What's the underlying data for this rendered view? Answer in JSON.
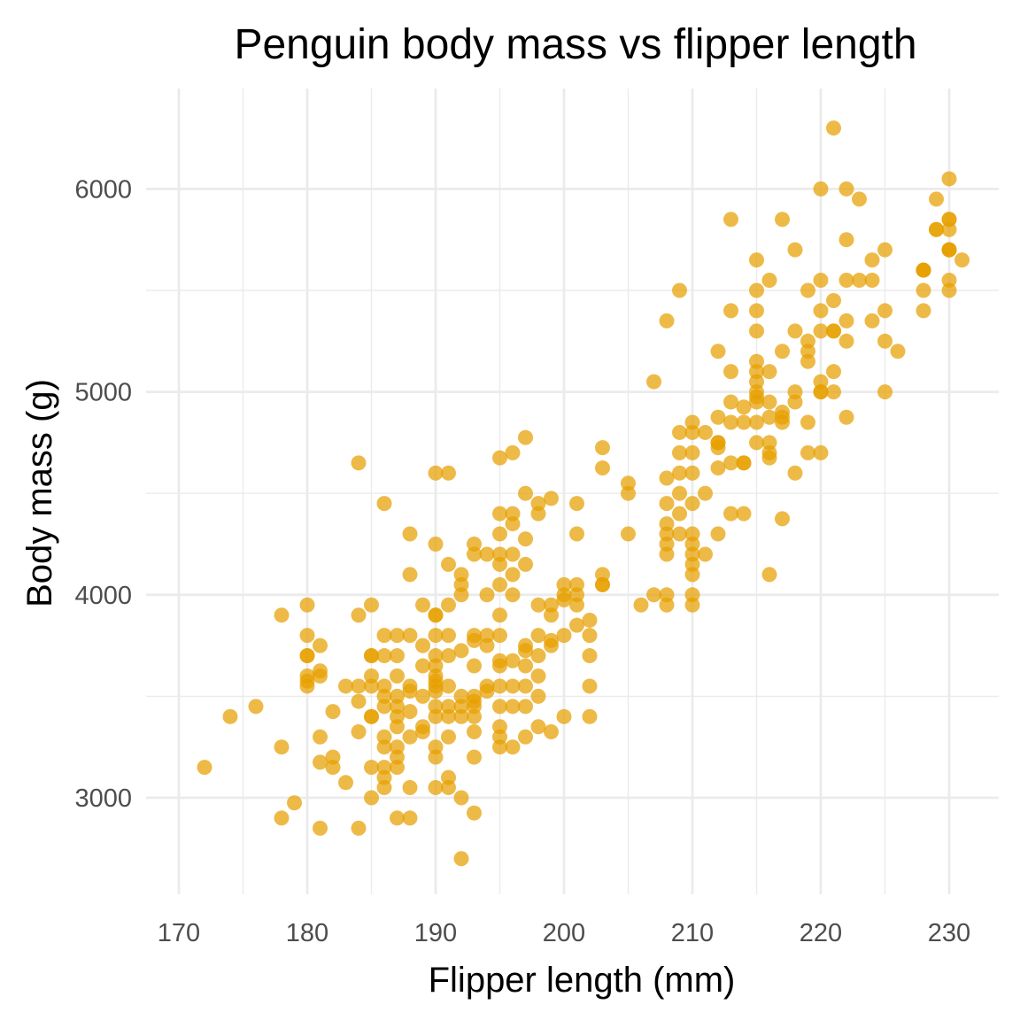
{
  "chart_data": {
    "type": "scatter",
    "title": "Penguin body mass vs flipper length",
    "xlabel": "Flipper length (mm)",
    "ylabel": "Body mass (g)",
    "xlim": [
      170,
      231
    ],
    "ylim": [
      2700,
      6300
    ],
    "xticks": [
      170,
      180,
      190,
      200,
      210,
      220,
      230
    ],
    "yticks": [
      3000,
      4000,
      5000,
      6000
    ],
    "grid": true,
    "legend": "none",
    "point_color": "#E69F00",
    "series": [
      {
        "x": [
          172,
          174,
          176,
          178,
          178,
          178,
          179,
          180,
          180,
          180,
          180,
          180,
          180,
          180,
          181,
          181,
          181,
          181,
          181,
          181,
          182,
          182,
          182,
          183,
          183,
          184,
          184,
          184,
          184,
          184,
          184,
          185,
          185,
          185,
          185,
          185,
          185,
          185,
          185,
          185,
          186,
          186,
          186,
          186,
          186,
          186,
          186,
          186,
          186,
          186,
          186,
          187,
          187,
          187,
          187,
          187,
          187,
          187,
          187,
          187,
          187,
          187,
          188,
          188,
          188,
          188,
          188,
          188,
          188,
          188,
          188,
          189,
          189,
          189,
          189,
          189,
          189,
          190,
          190,
          190,
          190,
          190,
          190,
          190,
          190,
          190,
          190,
          190,
          190,
          190,
          190,
          190,
          190,
          191,
          191,
          191,
          191,
          191,
          191,
          191,
          191,
          191,
          191,
          191,
          192,
          192,
          192,
          192,
          192,
          192,
          192,
          192,
          192,
          193,
          193,
          193,
          193,
          193,
          193,
          193,
          193,
          193,
          193,
          193,
          193,
          194,
          194,
          194,
          194,
          194,
          194,
          195,
          195,
          195,
          195,
          195,
          195,
          195,
          195,
          195,
          195,
          195,
          195,
          195,
          195,
          195,
          196,
          196,
          196,
          196,
          196,
          196,
          196,
          196,
          196,
          196,
          197,
          197,
          197,
          197,
          197,
          197,
          197,
          197,
          197,
          197,
          198,
          198,
          198,
          198,
          198,
          198,
          198,
          198,
          199,
          199,
          199,
          199,
          199,
          199,
          200,
          200,
          200,
          200,
          200,
          201,
          201,
          201,
          201,
          201,
          201,
          202,
          202,
          202,
          202,
          202,
          203,
          203,
          203,
          203,
          203,
          205,
          205,
          205,
          206,
          207,
          207,
          208,
          208,
          208,
          208,
          208,
          208,
          208,
          208,
          208,
          209,
          209,
          209,
          209,
          209,
          209,
          209,
          210,
          210,
          210,
          210,
          210,
          210,
          210,
          210,
          210,
          210,
          210,
          210,
          211,
          211,
          211,
          212,
          212,
          212,
          212,
          212,
          212,
          212,
          213,
          213,
          213,
          213,
          213,
          213,
          213,
          214,
          214,
          214,
          214,
          214,
          215,
          215,
          215,
          215,
          215,
          215,
          215,
          215,
          215,
          215,
          215,
          215,
          216,
          216,
          216,
          216,
          216,
          216,
          216,
          216,
          217,
          217,
          217,
          217,
          217,
          217,
          218,
          218,
          218,
          218,
          218,
          219,
          219,
          219,
          219,
          219,
          219,
          220,
          220,
          220,
          220,
          220,
          220,
          220,
          220,
          221,
          221,
          221,
          221,
          221,
          221,
          222,
          222,
          222,
          222,
          222,
          222,
          223,
          223,
          224,
          224,
          224,
          225,
          225,
          225,
          225,
          226,
          228,
          228,
          228,
          228,
          228,
          229,
          229,
          229,
          230,
          230,
          230,
          230,
          230,
          230,
          230,
          230,
          230,
          231
        ],
        "y": [
          3150,
          3400,
          3450,
          3250,
          3900,
          2900,
          2975,
          3950,
          3800,
          3700,
          3550,
          3600,
          3700,
          3575,
          3750,
          3625,
          3600,
          3300,
          3175,
          2850,
          3200,
          3150,
          3425,
          3550,
          3075,
          4650,
          3900,
          3550,
          3325,
          3475,
          2850,
          3950,
          3700,
          3400,
          3550,
          3150,
          3000,
          3600,
          3400,
          3700,
          4450,
          3800,
          3550,
          3500,
          3450,
          3300,
          3250,
          3150,
          3100,
          3050,
          3700,
          3800,
          3700,
          3450,
          3350,
          3250,
          3200,
          3150,
          2900,
          3600,
          3400,
          3500,
          4300,
          4100,
          3800,
          3550,
          3525,
          3425,
          3300,
          3050,
          2900,
          3950,
          3750,
          3650,
          3500,
          3350,
          3325,
          4600,
          4250,
          3900,
          3800,
          3700,
          3650,
          3600,
          3550,
          3450,
          3400,
          3250,
          3200,
          3050,
          3900,
          3575,
          3525,
          4600,
          4150,
          3950,
          3800,
          3700,
          3550,
          3450,
          3400,
          3300,
          3100,
          3050,
          4100,
          4050,
          4000,
          3725,
          3500,
          3450,
          3400,
          3000,
          2700,
          4250,
          4200,
          3800,
          3775,
          3650,
          3500,
          3475,
          3450,
          3400,
          3325,
          3200,
          2925,
          4200,
          4000,
          3800,
          3750,
          3550,
          3525,
          4675,
          4400,
          4300,
          4200,
          4150,
          4050,
          3900,
          3800,
          3675,
          3650,
          3550,
          3450,
          3350,
          3300,
          3250,
          4700,
          4400,
          4350,
          4200,
          4100,
          4000,
          3675,
          3550,
          3450,
          3250,
          4775,
          4500,
          4275,
          4150,
          3750,
          3725,
          3650,
          3550,
          3450,
          3300,
          4450,
          4400,
          3950,
          3800,
          3700,
          3600,
          3500,
          3350,
          4475,
          3950,
          3900,
          3775,
          3750,
          3325,
          4050,
          4000,
          3975,
          3800,
          3400,
          4450,
          4300,
          4050,
          4000,
          3950,
          3850,
          3875,
          3800,
          3700,
          3550,
          3400,
          4725,
          4625,
          4100,
          4050,
          4050,
          4550,
          4500,
          4300,
          3950,
          4000,
          5050,
          4575,
          4450,
          4350,
          4300,
          4200,
          4000,
          3950,
          5350,
          4250,
          5500,
          4800,
          4700,
          4600,
          4500,
          4400,
          4300,
          4850,
          4800,
          4700,
          4600,
          4450,
          4300,
          4200,
          4150,
          4100,
          4000,
          3950,
          4250,
          4200,
          4800,
          4500,
          5200,
          4875,
          4750,
          4725,
          4625,
          4300,
          4750,
          5850,
          5400,
          5100,
          4950,
          4850,
          4650,
          4400,
          4925,
          4850,
          4650,
          4400,
          4650,
          5650,
          5500,
          5400,
          5300,
          5150,
          5100,
          5050,
          5000,
          4975,
          4950,
          4850,
          4750,
          5550,
          5100,
          4950,
          4875,
          4750,
          4700,
          4675,
          4100,
          5850,
          5200,
          4900,
          4875,
          4850,
          4375,
          5700,
          5300,
          5000,
          4950,
          4600,
          5500,
          5250,
          5200,
          5150,
          4850,
          4700,
          6000,
          5550,
          5400,
          5300,
          5050,
          5000,
          4700,
          5000,
          6300,
          5450,
          5300,
          5100,
          5000,
          5300,
          6000,
          5750,
          5550,
          5350,
          5250,
          4875,
          5950,
          5550,
          5650,
          5550,
          5350,
          5700,
          5400,
          5250,
          5000,
          5200,
          5600,
          5600,
          5400,
          5500,
          5600,
          5950,
          5800,
          5800,
          6050,
          5850,
          5800,
          5700,
          5700,
          5550,
          5500,
          5700,
          5850,
          5650
        ]
      }
    ]
  }
}
